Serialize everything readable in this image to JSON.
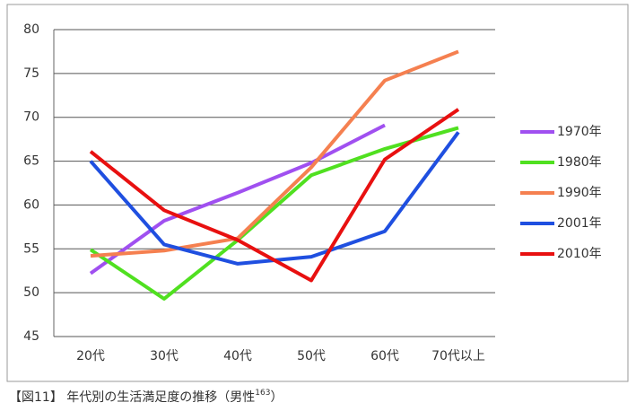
{
  "chart_data": {
    "type": "line",
    "categories": [
      "20代",
      "30代",
      "40代",
      "50代",
      "60代",
      "70代以上"
    ],
    "series": [
      {
        "name": "1970年",
        "color": "#a050f0",
        "values": [
          52.2,
          58.2,
          61.4,
          64.8,
          69.1,
          null
        ]
      },
      {
        "name": "1980年",
        "color": "#50e020",
        "values": [
          54.9,
          49.3,
          56.0,
          63.4,
          66.4,
          68.8
        ]
      },
      {
        "name": "1990年",
        "color": "#f58050",
        "values": [
          54.2,
          54.8,
          56.2,
          64.3,
          74.2,
          77.5
        ]
      },
      {
        "name": "2001年",
        "color": "#1f4fe0",
        "values": [
          65.0,
          55.5,
          53.3,
          54.1,
          57.0,
          68.3
        ]
      },
      {
        "name": "2010年",
        "color": "#e81010",
        "values": [
          66.1,
          59.4,
          56.0,
          51.4,
          65.2,
          70.9
        ]
      }
    ],
    "ylim": [
      45,
      80
    ],
    "yticks": [
      45,
      50,
      55,
      60,
      65,
      70,
      75,
      80
    ],
    "grid": true,
    "legend": "right",
    "caption": {
      "main": "【図11】 年代別の生活満足度の推移（男性",
      "sup": "163",
      "end": "）"
    }
  }
}
